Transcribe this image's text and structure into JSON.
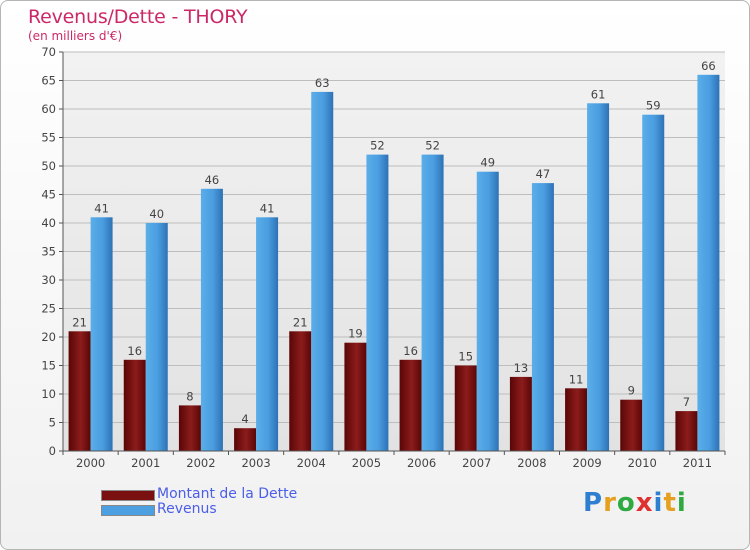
{
  "chart_data": {
    "type": "bar",
    "title": "Revenus/Dette - THORY",
    "subtitle": "(en milliers d'€)",
    "categories": [
      "2000",
      "2001",
      "2002",
      "2003",
      "2004",
      "2005",
      "2006",
      "2007",
      "2008",
      "2009",
      "2010",
      "2011"
    ],
    "series": [
      {
        "name": "Montant de la Dette",
        "color": "#7a1010",
        "values": [
          21,
          16,
          8,
          4,
          21,
          19,
          16,
          15,
          13,
          11,
          9,
          7
        ]
      },
      {
        "name": "Revenus",
        "color": "#4c9fe0",
        "values": [
          41,
          40,
          46,
          41,
          63,
          52,
          52,
          49,
          47,
          61,
          59,
          66
        ]
      }
    ],
    "ylim": [
      0,
      70
    ],
    "yticks": [
      0,
      5,
      10,
      15,
      20,
      25,
      30,
      35,
      40,
      45,
      50,
      55,
      60,
      65,
      70
    ],
    "grid": true,
    "legend": "bottom-left"
  },
  "brand": {
    "name": "Proxiti",
    "letters": [
      "P",
      "r",
      "o",
      "x",
      "i",
      "t",
      "i"
    ],
    "colors": [
      "#2f7fd0",
      "#e6a020",
      "#2faa40",
      "#e03030",
      "#2f7fd0",
      "#e6a020",
      "#2faa40"
    ]
  }
}
